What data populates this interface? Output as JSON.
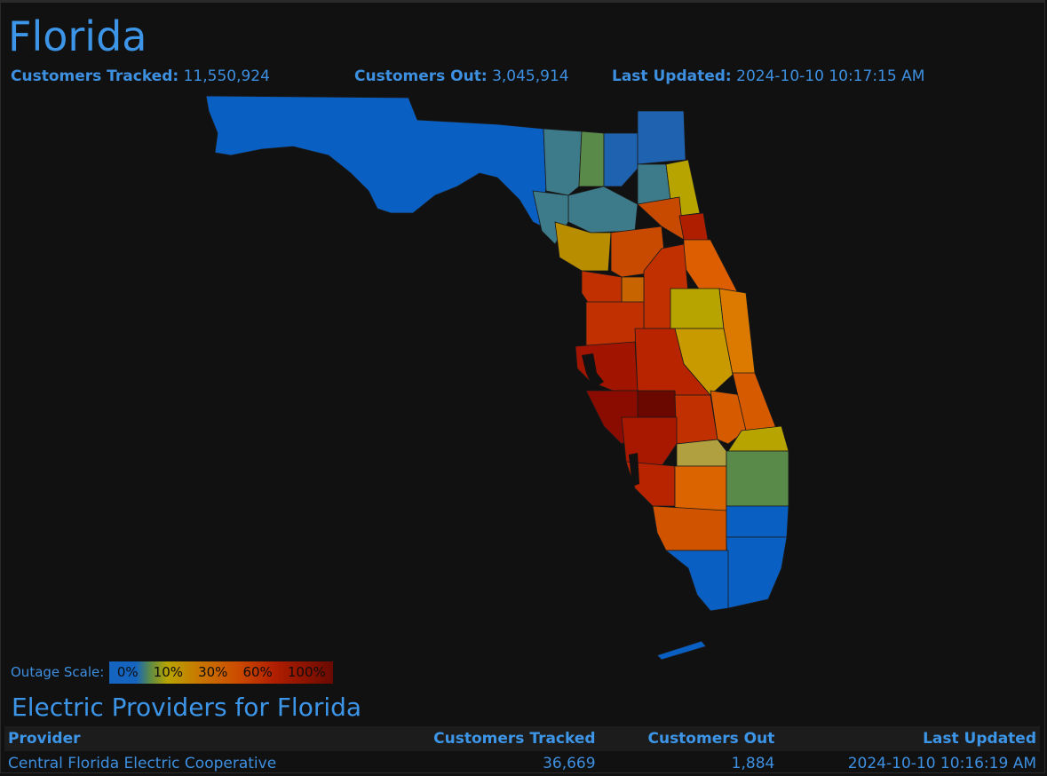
{
  "header": {
    "title": "Florida",
    "tracked_label": "Customers Tracked:",
    "tracked_value": "11,550,924",
    "out_label": "Customers Out:",
    "out_value": "3,045,914",
    "updated_label": "Last Updated:",
    "updated_value": "2024-10-10 10:17:15 AM"
  },
  "legend": {
    "label": "Outage Scale:",
    "stops": [
      "0%",
      "10%",
      "30%",
      "60%",
      "100%"
    ],
    "colors": [
      "#1565c0",
      "#5a8a4a",
      "#b8a400",
      "#c87800",
      "#cc4a00",
      "#b01e00",
      "#6a0a00"
    ]
  },
  "section_title": "Electric Providers for Florida",
  "table": {
    "columns": [
      "Provider",
      "Customers Tracked",
      "Customers Out",
      "Last Updated"
    ],
    "rows": [
      [
        "Central Florida Electric Cooperative",
        "36,669",
        "1,884",
        "2024-10-10 10:16:19 AM"
      ]
    ]
  }
}
